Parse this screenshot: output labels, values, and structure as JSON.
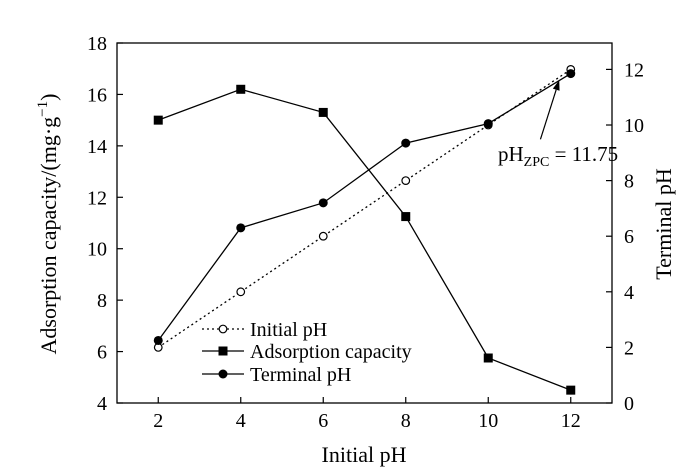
{
  "chart_data": {
    "type": "line",
    "x": [
      2,
      4,
      6,
      8,
      10,
      12
    ],
    "xlabel": "Initial pH",
    "ylabel_left": "Adsorption capacity/(mg·g",
    "ylabel_left_sup": "−1",
    "ylabel_left_close": ")",
    "ylabel_right": "Terminal pH",
    "xlim": [
      1,
      13
    ],
    "ylim_left": [
      4,
      18
    ],
    "ylim_right": [
      0,
      12.95
    ],
    "xticks": [
      2,
      4,
      6,
      8,
      10,
      12
    ],
    "yticks_left": [
      4,
      6,
      8,
      10,
      12,
      14,
      16,
      18
    ],
    "yticks_right": [
      0,
      2,
      4,
      6,
      8,
      10,
      12
    ],
    "grid": false,
    "legend_placement": "bottom-left",
    "series": [
      {
        "name": "Initial pH",
        "axis": "right",
        "marker": "open-circle",
        "line": "dotted",
        "values": [
          2,
          4,
          6,
          8,
          10,
          12
        ]
      },
      {
        "name": "Adsorption capacity",
        "axis": "left",
        "marker": "square",
        "line": "solid",
        "values": [
          15.0,
          16.2,
          15.3,
          11.25,
          5.75,
          4.5
        ]
      },
      {
        "name": "Terminal pH",
        "axis": "right",
        "marker": "filled-circle",
        "line": "solid",
        "values": [
          2.25,
          6.3,
          7.2,
          9.35,
          10.05,
          11.85
        ]
      }
    ],
    "annotation": {
      "text_main": "pH",
      "text_sub": "ZPC",
      "text_rest": " = 11.75",
      "points_to_x": 11.75
    }
  }
}
